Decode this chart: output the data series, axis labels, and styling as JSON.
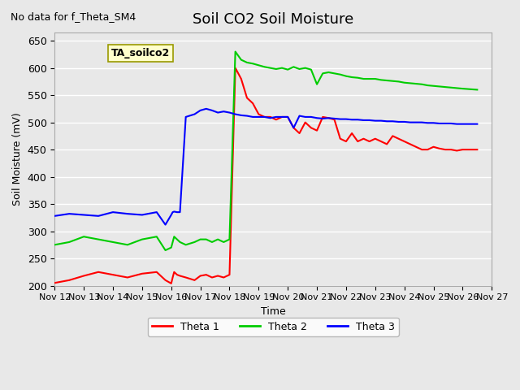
{
  "title": "Soil CO2 Soil Moisture",
  "ylabel": "Soil Moisture (mV)",
  "xlabel": "Time",
  "no_data_text": "No data for f_Theta_SM4",
  "station_label": "TA_soilco2",
  "ylim": [
    200,
    665
  ],
  "yticks": [
    200,
    250,
    300,
    350,
    400,
    450,
    500,
    550,
    600,
    650
  ],
  "background_color": "#e8e8e8",
  "plot_bg_color": "#e8e8e8",
  "grid_color": "#ffffff",
  "legend_entries": [
    "Theta 1",
    "Theta 2",
    "Theta 3"
  ],
  "line_colors": [
    "#ff0000",
    "#00cc00",
    "#0000ff"
  ],
  "x_tick_labels": [
    "Nov 12",
    "Nov 13",
    "Nov 14",
    "Nov 15",
    "Nov 16",
    "Nov 17",
    "Nov 18",
    "Nov 19",
    "Nov 20",
    "Nov 21",
    "Nov 22",
    "Nov 23",
    "Nov 24",
    "Nov 25",
    "Nov 26",
    "Nov 27"
  ],
  "theta1_x": [
    0,
    0.5,
    1,
    1.5,
    2,
    2.5,
    3,
    3.5,
    3.8,
    4,
    4.05,
    4.1,
    4.2,
    4.3,
    4.5,
    4.8,
    5,
    5.2,
    5.4,
    5.6,
    5.8,
    6,
    6.2,
    6.4,
    6.6,
    6.8,
    7,
    7.2,
    7.4,
    7.6,
    7.8,
    8,
    8.2,
    8.4,
    8.6,
    8.8,
    9,
    9.2,
    9.4,
    9.6,
    9.8,
    10,
    10.2,
    10.4,
    10.6,
    10.8,
    11,
    11.2,
    11.4,
    11.6,
    11.8,
    12,
    12.2,
    12.4,
    12.6,
    12.8,
    13,
    13.2,
    13.4,
    13.6,
    13.8,
    14,
    14.5
  ],
  "theta1_y": [
    205,
    210,
    218,
    225,
    220,
    215,
    222,
    225,
    210,
    204,
    215,
    225,
    220,
    218,
    215,
    210,
    218,
    220,
    215,
    218,
    215,
    220,
    600,
    580,
    545,
    535,
    515,
    510,
    510,
    505,
    510,
    510,
    490,
    480,
    500,
    490,
    485,
    510,
    508,
    505,
    470,
    465,
    480,
    465,
    470,
    465,
    470,
    465,
    460,
    475,
    470,
    465,
    460,
    455,
    450,
    450,
    455,
    452,
    450,
    450,
    448,
    450,
    450
  ],
  "theta2_x": [
    0,
    0.5,
    1,
    1.5,
    2,
    2.5,
    3,
    3.5,
    3.8,
    4,
    4.05,
    4.1,
    4.2,
    4.3,
    4.5,
    4.8,
    5,
    5.2,
    5.4,
    5.6,
    5.8,
    6,
    6.2,
    6.4,
    6.6,
    6.8,
    7,
    7.2,
    7.4,
    7.6,
    7.8,
    8,
    8.2,
    8.4,
    8.6,
    8.8,
    9,
    9.2,
    9.4,
    9.6,
    9.8,
    10,
    10.2,
    10.4,
    10.6,
    10.8,
    11,
    11.2,
    11.4,
    11.6,
    11.8,
    12,
    12.2,
    12.4,
    12.6,
    12.8,
    13,
    13.2,
    13.4,
    13.6,
    13.8,
    14,
    14.5
  ],
  "theta2_y": [
    275,
    280,
    290,
    285,
    280,
    275,
    285,
    290,
    265,
    270,
    280,
    290,
    285,
    280,
    275,
    280,
    285,
    285,
    280,
    285,
    280,
    285,
    630,
    615,
    610,
    608,
    605,
    602,
    600,
    598,
    600,
    597,
    602,
    598,
    600,
    597,
    570,
    590,
    592,
    590,
    588,
    585,
    583,
    582,
    580,
    580,
    580,
    578,
    577,
    576,
    575,
    573,
    572,
    571,
    570,
    568,
    567,
    566,
    565,
    564,
    563,
    562,
    560
  ],
  "theta3_x": [
    0,
    0.5,
    1,
    1.5,
    2,
    2.5,
    3,
    3.5,
    3.8,
    4,
    4.05,
    4.1,
    4.2,
    4.3,
    4.5,
    4.8,
    5,
    5.2,
    5.4,
    5.6,
    5.8,
    6,
    6.2,
    6.4,
    6.6,
    6.8,
    7,
    7.2,
    7.4,
    7.6,
    7.8,
    8,
    8.2,
    8.4,
    8.6,
    8.8,
    9,
    9.2,
    9.4,
    9.6,
    9.8,
    10,
    10.2,
    10.4,
    10.6,
    10.8,
    11,
    11.2,
    11.4,
    11.6,
    11.8,
    12,
    12.2,
    12.4,
    12.6,
    12.8,
    13,
    13.2,
    13.4,
    13.6,
    13.8,
    14,
    14.5
  ],
  "theta3_y": [
    328,
    332,
    330,
    328,
    335,
    332,
    330,
    335,
    312,
    330,
    335,
    336,
    335,
    335,
    510,
    515,
    522,
    525,
    522,
    518,
    520,
    518,
    515,
    513,
    512,
    510,
    510,
    510,
    508,
    510,
    510,
    510,
    490,
    512,
    510,
    510,
    508,
    507,
    508,
    507,
    506,
    506,
    505,
    505,
    504,
    504,
    503,
    503,
    502,
    502,
    501,
    501,
    500,
    500,
    500,
    499,
    499,
    498,
    498,
    498,
    497,
    497,
    497
  ]
}
